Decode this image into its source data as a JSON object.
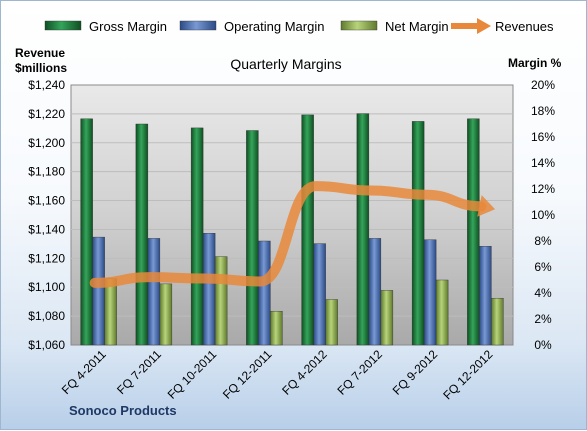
{
  "chart_data": {
    "type": "bar",
    "title": "Quarterly Margins",
    "categories": [
      "FQ 4-2011",
      "FQ 7-2011",
      "FQ 10-2011",
      "FQ 12-2011",
      "FQ 4-2012",
      "FQ 7-2012",
      "FQ 9-2012",
      "FQ 12-2012"
    ],
    "series": [
      {
        "name": "Gross Margin",
        "axis": "right",
        "type": "bar",
        "color": "#1e7a3c",
        "values": [
          17.4,
          17.0,
          16.7,
          16.5,
          17.7,
          17.8,
          17.2,
          17.4
        ]
      },
      {
        "name": "Operating Margin",
        "axis": "right",
        "type": "bar",
        "color": "#4a6fb0",
        "values": [
          8.3,
          8.2,
          8.6,
          8.0,
          7.8,
          8.2,
          8.1,
          7.6
        ]
      },
      {
        "name": "Net Margin",
        "axis": "right",
        "type": "bar",
        "color": "#9bbb59",
        "values": [
          5.1,
          4.7,
          6.8,
          2.6,
          3.5,
          4.2,
          5.0,
          3.6
        ]
      },
      {
        "name": "Revenues",
        "axis": "left",
        "type": "line",
        "color": "#e8883a",
        "values": [
          1103,
          1107,
          1106,
          1104,
          1170,
          1167,
          1164,
          1156
        ]
      }
    ],
    "left_axis": {
      "label_line1": "Revenue",
      "label_line2": "$millions",
      "range": [
        1060,
        1240
      ],
      "step": 20,
      "ticks": [
        "$1,060",
        "$1,080",
        "$1,100",
        "$1,120",
        "$1,140",
        "$1,160",
        "$1,180",
        "$1,200",
        "$1,220",
        "$1,240"
      ]
    },
    "right_axis": {
      "label": "Margin %",
      "range": [
        0,
        20
      ],
      "step": 2,
      "ticks": [
        "0%",
        "2%",
        "4%",
        "6%",
        "8%",
        "10%",
        "12%",
        "14%",
        "16%",
        "18%",
        "20%"
      ]
    },
    "legend": {
      "position": "top",
      "items": [
        {
          "label": "Gross Margin",
          "color": "#1e7a3c",
          "kind": "bar"
        },
        {
          "label": "Operating Margin",
          "color": "#4a6fb0",
          "kind": "bar"
        },
        {
          "label": "Net Margin",
          "color": "#9bbb59",
          "kind": "bar"
        },
        {
          "label": "Revenues",
          "color": "#e8883a",
          "kind": "arrow"
        }
      ]
    },
    "grid": true,
    "footer": "Sonoco Products"
  }
}
